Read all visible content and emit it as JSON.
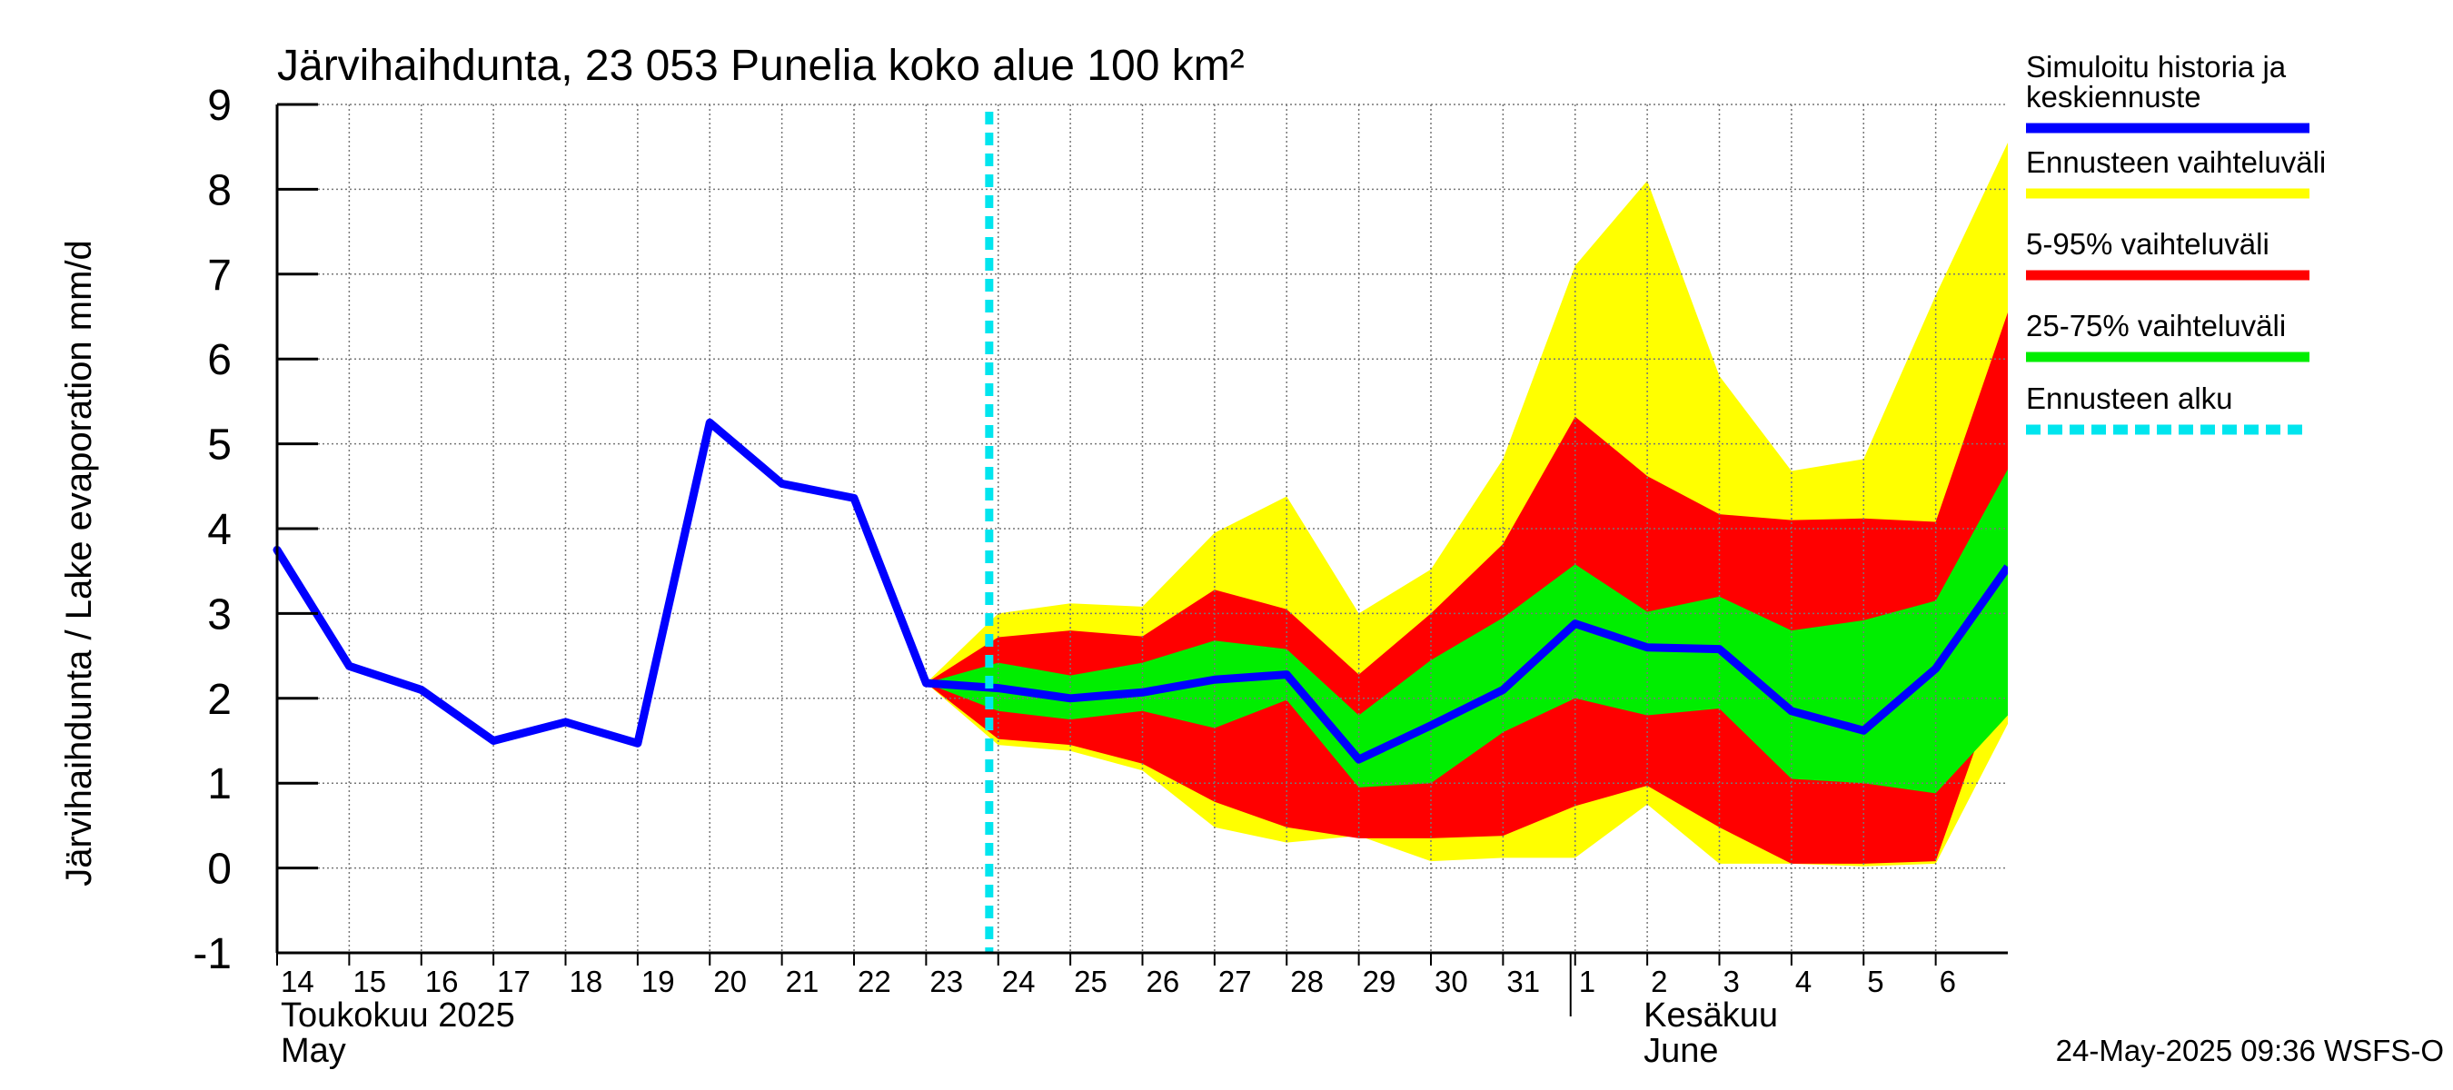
{
  "chart_data": {
    "type": "area",
    "title": "Järvihaihdunta, 23 053 Punelia koko alue 100 km²",
    "ylabel": "Järvihaihdunta / Lake evaporation   mm/d",
    "ylim": [
      -1,
      9
    ],
    "yticks": [
      "-1",
      "0",
      "1",
      "2",
      "3",
      "4",
      "5",
      "6",
      "7",
      "8",
      "9"
    ],
    "xlim": [
      "2025-05-14",
      "2025-06-06T24:00"
    ],
    "x_day_labels": [
      "14",
      "15",
      "16",
      "17",
      "18",
      "19",
      "20",
      "21",
      "22",
      "23",
      "24",
      "25",
      "26",
      "27",
      "28",
      "29",
      "30",
      "31",
      "1",
      "2",
      "3",
      "4",
      "5",
      "6"
    ],
    "month_labels": [
      {
        "line1": "Toukokuu  2025",
        "line2": "May"
      },
      {
        "line1": "Kesäkuu",
        "line2": "June"
      }
    ],
    "grid": true,
    "legend_position": "right",
    "timestamp": "24-May-2025 09:36 WSFS-O",
    "forecast_start": "2025-05-23T21:00",
    "history": {
      "name": "Simuloitu historia ja keskiennuste",
      "color": "#0000ff",
      "x": [
        "2025-05-14",
        "2025-05-15",
        "2025-05-16",
        "2025-05-17",
        "2025-05-18",
        "2025-05-19",
        "2025-05-20",
        "2025-05-21",
        "2025-05-22",
        "2025-05-23"
      ],
      "values": [
        3.75,
        2.38,
        2.1,
        1.5,
        1.72,
        1.47,
        5.25,
        4.53,
        4.36,
        2.18
      ]
    },
    "forecast": {
      "x": [
        "2025-05-23",
        "2025-05-24",
        "2025-05-25",
        "2025-05-26",
        "2025-05-27",
        "2025-05-28",
        "2025-05-29",
        "2025-05-30",
        "2025-05-31",
        "2025-06-01",
        "2025-06-02",
        "2025-06-03",
        "2025-06-04",
        "2025-06-05",
        "2025-06-06",
        "2025-06-07"
      ],
      "median": [
        2.18,
        2.12,
        2.0,
        2.07,
        2.22,
        2.28,
        1.28,
        1.68,
        2.1,
        2.88,
        2.6,
        2.58,
        1.85,
        1.62,
        2.35,
        3.55
      ],
      "range_min": [
        2.18,
        1.45,
        1.38,
        1.15,
        0.48,
        0.3,
        0.38,
        0.08,
        0.12,
        0.12,
        0.75,
        0.05,
        0.05,
        0.02,
        0.05,
        1.7
      ],
      "range_max": [
        2.18,
        3.0,
        3.12,
        3.08,
        3.95,
        4.38,
        3.0,
        3.52,
        4.82,
        7.1,
        8.1,
        5.8,
        4.68,
        4.82,
        6.75,
        8.55
      ],
      "p5": [
        2.18,
        1.52,
        1.45,
        1.23,
        0.78,
        0.48,
        0.35,
        0.35,
        0.38,
        0.73,
        0.97,
        0.48,
        0.05,
        0.05,
        0.08,
        2.5
      ],
      "p95": [
        2.18,
        2.72,
        2.8,
        2.73,
        3.28,
        3.05,
        2.28,
        3.0,
        3.82,
        5.32,
        4.62,
        4.17,
        4.1,
        4.12,
        4.08,
        6.55
      ],
      "p25": [
        2.18,
        1.85,
        1.75,
        1.85,
        1.65,
        1.98,
        0.95,
        1.0,
        1.6,
        2.0,
        1.8,
        1.88,
        1.05,
        1.0,
        0.88,
        1.8
      ],
      "p75": [
        2.18,
        2.42,
        2.27,
        2.42,
        2.68,
        2.58,
        1.8,
        2.45,
        2.95,
        3.58,
        3.02,
        3.2,
        2.8,
        2.92,
        3.15,
        4.7
      ]
    },
    "legend": [
      {
        "label_lines": [
          "Simuloitu historia ja",
          "keskiennuste"
        ],
        "color": "#0000ff",
        "style": "solid"
      },
      {
        "label_lines": [
          "Ennusteen vaihteluväli"
        ],
        "color": "#ffff00",
        "style": "solid"
      },
      {
        "label_lines": [
          "5-95% vaihteluväli"
        ],
        "color": "#ff0000",
        "style": "solid"
      },
      {
        "label_lines": [
          "25-75% vaihteluväli"
        ],
        "color": "#00ee00",
        "style": "solid"
      },
      {
        "label_lines": [
          "Ennusteen alku"
        ],
        "color": "#00e5ee",
        "style": "dashed"
      }
    ]
  }
}
